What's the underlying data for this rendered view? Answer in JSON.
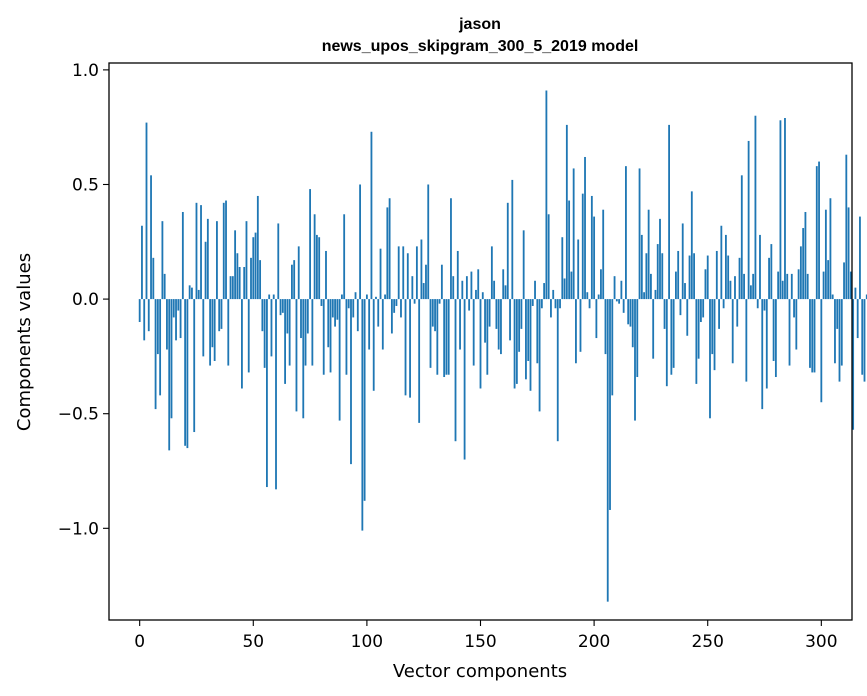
{
  "chart_data": {
    "type": "bar",
    "title_lines": [
      "jason",
      "news_upos_skipgram_300_5_2019 model"
    ],
    "xlabel": "Vector components",
    "ylabel": "Components values",
    "xlim": [
      -13.5,
      313.5
    ],
    "ylim": [
      -1.4,
      1.03
    ],
    "xticks": [
      0,
      50,
      100,
      150,
      200,
      250,
      300
    ],
    "xtick_labels": [
      "0",
      "50",
      "100",
      "150",
      "200",
      "250",
      "300"
    ],
    "yticks": [
      1.0,
      0.5,
      0.0,
      -0.5,
      -1.0
    ],
    "ytick_labels": [
      "1.0",
      "0.5",
      "0.0",
      "−0.5",
      "−1.0"
    ],
    "bar_color": "#1f77b4",
    "grid": false,
    "values": [
      -0.1,
      0.32,
      -0.18,
      0.77,
      -0.14,
      0.54,
      0.18,
      -0.48,
      -0.24,
      -0.42,
      0.34,
      0.11,
      -0.22,
      -0.66,
      -0.52,
      -0.08,
      -0.18,
      -0.05,
      -0.17,
      0.38,
      -0.64,
      -0.65,
      0.06,
      0.05,
      -0.58,
      0.42,
      0.04,
      0.41,
      -0.25,
      0.25,
      0.35,
      -0.29,
      -0.21,
      -0.27,
      0.34,
      -0.14,
      -0.13,
      0.42,
      0.43,
      -0.29,
      0.1,
      0.1,
      0.3,
      0.2,
      0.14,
      -0.39,
      0.14,
      0.34,
      -0.32,
      0.18,
      0.27,
      0.29,
      0.45,
      0.17,
      -0.14,
      -0.3,
      -0.82,
      0.02,
      -0.25,
      0.02,
      -0.83,
      0.33,
      -0.07,
      -0.06,
      -0.37,
      -0.15,
      -0.29,
      0.15,
      0.17,
      -0.49,
      0.23,
      -0.17,
      -0.52,
      -0.29,
      -0.15,
      0.48,
      -0.29,
      0.37,
      0.28,
      0.27,
      -0.03,
      -0.33,
      0.21,
      -0.21,
      -0.32,
      -0.08,
      -0.12,
      -0.09,
      -0.53,
      0.02,
      0.37,
      -0.33,
      -0.04,
      -0.72,
      -0.08,
      0.03,
      -0.14,
      0.5,
      -1.01,
      -0.88,
      0.02,
      -0.22,
      0.73,
      -0.4,
      0.01,
      -0.12,
      0.22,
      -0.22,
      0.02,
      0.4,
      0.44,
      -0.15,
      -0.06,
      -0.03,
      0.23,
      -0.08,
      0.23,
      -0.42,
      0.2,
      -0.43,
      0.1,
      -0.02,
      0.23,
      -0.54,
      0.26,
      0.07,
      0.15,
      0.5,
      -0.3,
      -0.12,
      -0.14,
      -0.33,
      -0.02,
      0.15,
      -0.34,
      -0.33,
      -0.33,
      0.44,
      0.1,
      -0.62,
      0.21,
      -0.22,
      0.08,
      -0.7,
      0.1,
      -0.05,
      0.12,
      -0.29,
      0.04,
      0.13,
      -0.39,
      0.03,
      -0.19,
      -0.33,
      -0.12,
      0.23,
      0.08,
      -0.13,
      -0.22,
      -0.24,
      0.13,
      0.06,
      0.42,
      -0.18,
      0.52,
      -0.39,
      -0.37,
      -0.23,
      -0.13,
      0.3,
      -0.35,
      -0.27,
      -0.4,
      -0.03,
      0.08,
      -0.28,
      -0.49,
      -0.04,
      0.07,
      0.91,
      0.37,
      -0.08,
      0.04,
      -0.04,
      -0.62,
      -0.04,
      0.27,
      0.09,
      0.76,
      0.43,
      0.12,
      0.57,
      -0.28,
      0.26,
      -0.23,
      0.46,
      0.62,
      0.03,
      -0.04,
      0.45,
      0.36,
      -0.17,
      0.02,
      0.13,
      0.39,
      -0.24,
      -1.32,
      -0.92,
      -0.42,
      0.1,
      -0.01,
      -0.02,
      0.08,
      -0.06,
      0.58,
      -0.11,
      -0.12,
      -0.21,
      -0.53,
      -0.34,
      0.57,
      0.28,
      0.03,
      0.2,
      0.39,
      0.11,
      -0.26,
      0.04,
      0.24,
      0.35,
      0.2,
      -0.13,
      -0.38,
      0.76,
      -0.33,
      -0.3,
      0.12,
      0.21,
      -0.07,
      0.33,
      0.07,
      -0.16,
      0.19,
      0.47,
      0.2,
      -0.37,
      -0.26,
      -0.1,
      -0.08,
      0.13,
      0.19,
      -0.52,
      -0.24,
      -0.31,
      0.21,
      -0.13,
      0.32,
      -0.04,
      0.28,
      0.19,
      0.08,
      -0.28,
      0.1,
      -0.12,
      0.18,
      0.54,
      0.11,
      -0.36,
      0.69,
      0.06,
      0.11,
      0.8,
      -0.04,
      0.28,
      -0.48,
      -0.05,
      -0.39,
      0.18,
      0.24,
      -0.27,
      -0.34,
      0.12,
      0.78,
      0.08,
      0.79,
      0.11,
      -0.29,
      0.11,
      -0.08,
      -0.22,
      0.13,
      0.23,
      0.31,
      0.38,
      0.11,
      -0.3,
      -0.32,
      -0.32,
      0.58,
      0.6,
      -0.45,
      0.12,
      0.39,
      0.17,
      0.44,
      0.02,
      -0.28,
      -0.13,
      -0.36,
      -0.29,
      0.16,
      0.63,
      0.4,
      0.12,
      -0.57,
      0.05,
      -0.17,
      0.36,
      -0.33,
      -0.36,
      0.02,
      0.18
    ]
  }
}
